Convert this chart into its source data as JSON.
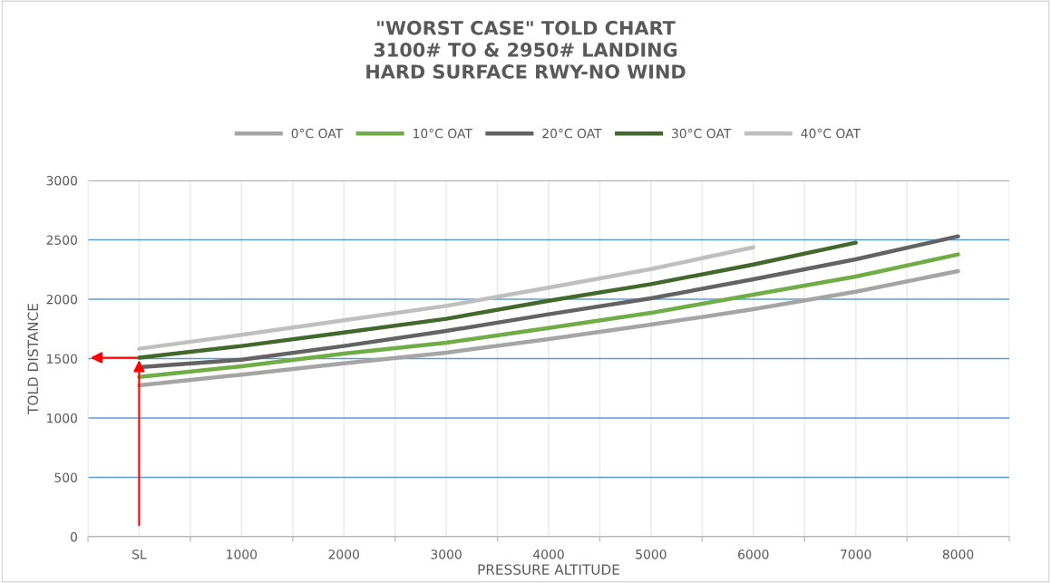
{
  "chart_data": {
    "type": "line",
    "title": "\"WORST CASE\" TOLD CHART\n3100# TO & 2950# LANDING\nHARD SURFACE RWY-NO WIND",
    "xlabel": "PRESSURE ALTITUDE",
    "ylabel": "TOLD DISTANCE",
    "categories": [
      "SL",
      "1000",
      "2000",
      "3000",
      "4000",
      "5000",
      "6000",
      "7000",
      "8000"
    ],
    "series": [
      {
        "name": "0°C OAT",
        "color": "#a5a5a5",
        "values": [
          1275,
          1365,
          1460,
          1550,
          1664,
          1786,
          1916,
          2063,
          2237
        ]
      },
      {
        "name": "10°C OAT",
        "color": "#70ad47",
        "values": [
          1346,
          1435,
          1542,
          1634,
          1758,
          1885,
          2038,
          2191,
          2377
        ]
      },
      {
        "name": "20°C OAT",
        "color": "#636363",
        "values": [
          1427,
          1491,
          1606,
          1733,
          1873,
          2008,
          2168,
          2336,
          2529
        ]
      },
      {
        "name": "30°C OAT",
        "color": "#43682b",
        "values": [
          1508,
          1606,
          1720,
          1835,
          1987,
          2127,
          2292,
          2476,
          null
        ]
      },
      {
        "name": "40°C OAT",
        "color": "#bfbfbf",
        "values": [
          1583,
          1700,
          1822,
          1944,
          2097,
          2254,
          2437,
          null,
          null
        ]
      }
    ],
    "ylim": [
      0,
      3000
    ],
    "yticks": [
      0,
      500,
      1000,
      1500,
      2000,
      2500,
      3000
    ],
    "grid": true,
    "legend": "top",
    "marker": "none",
    "line_style": "solid"
  }
}
